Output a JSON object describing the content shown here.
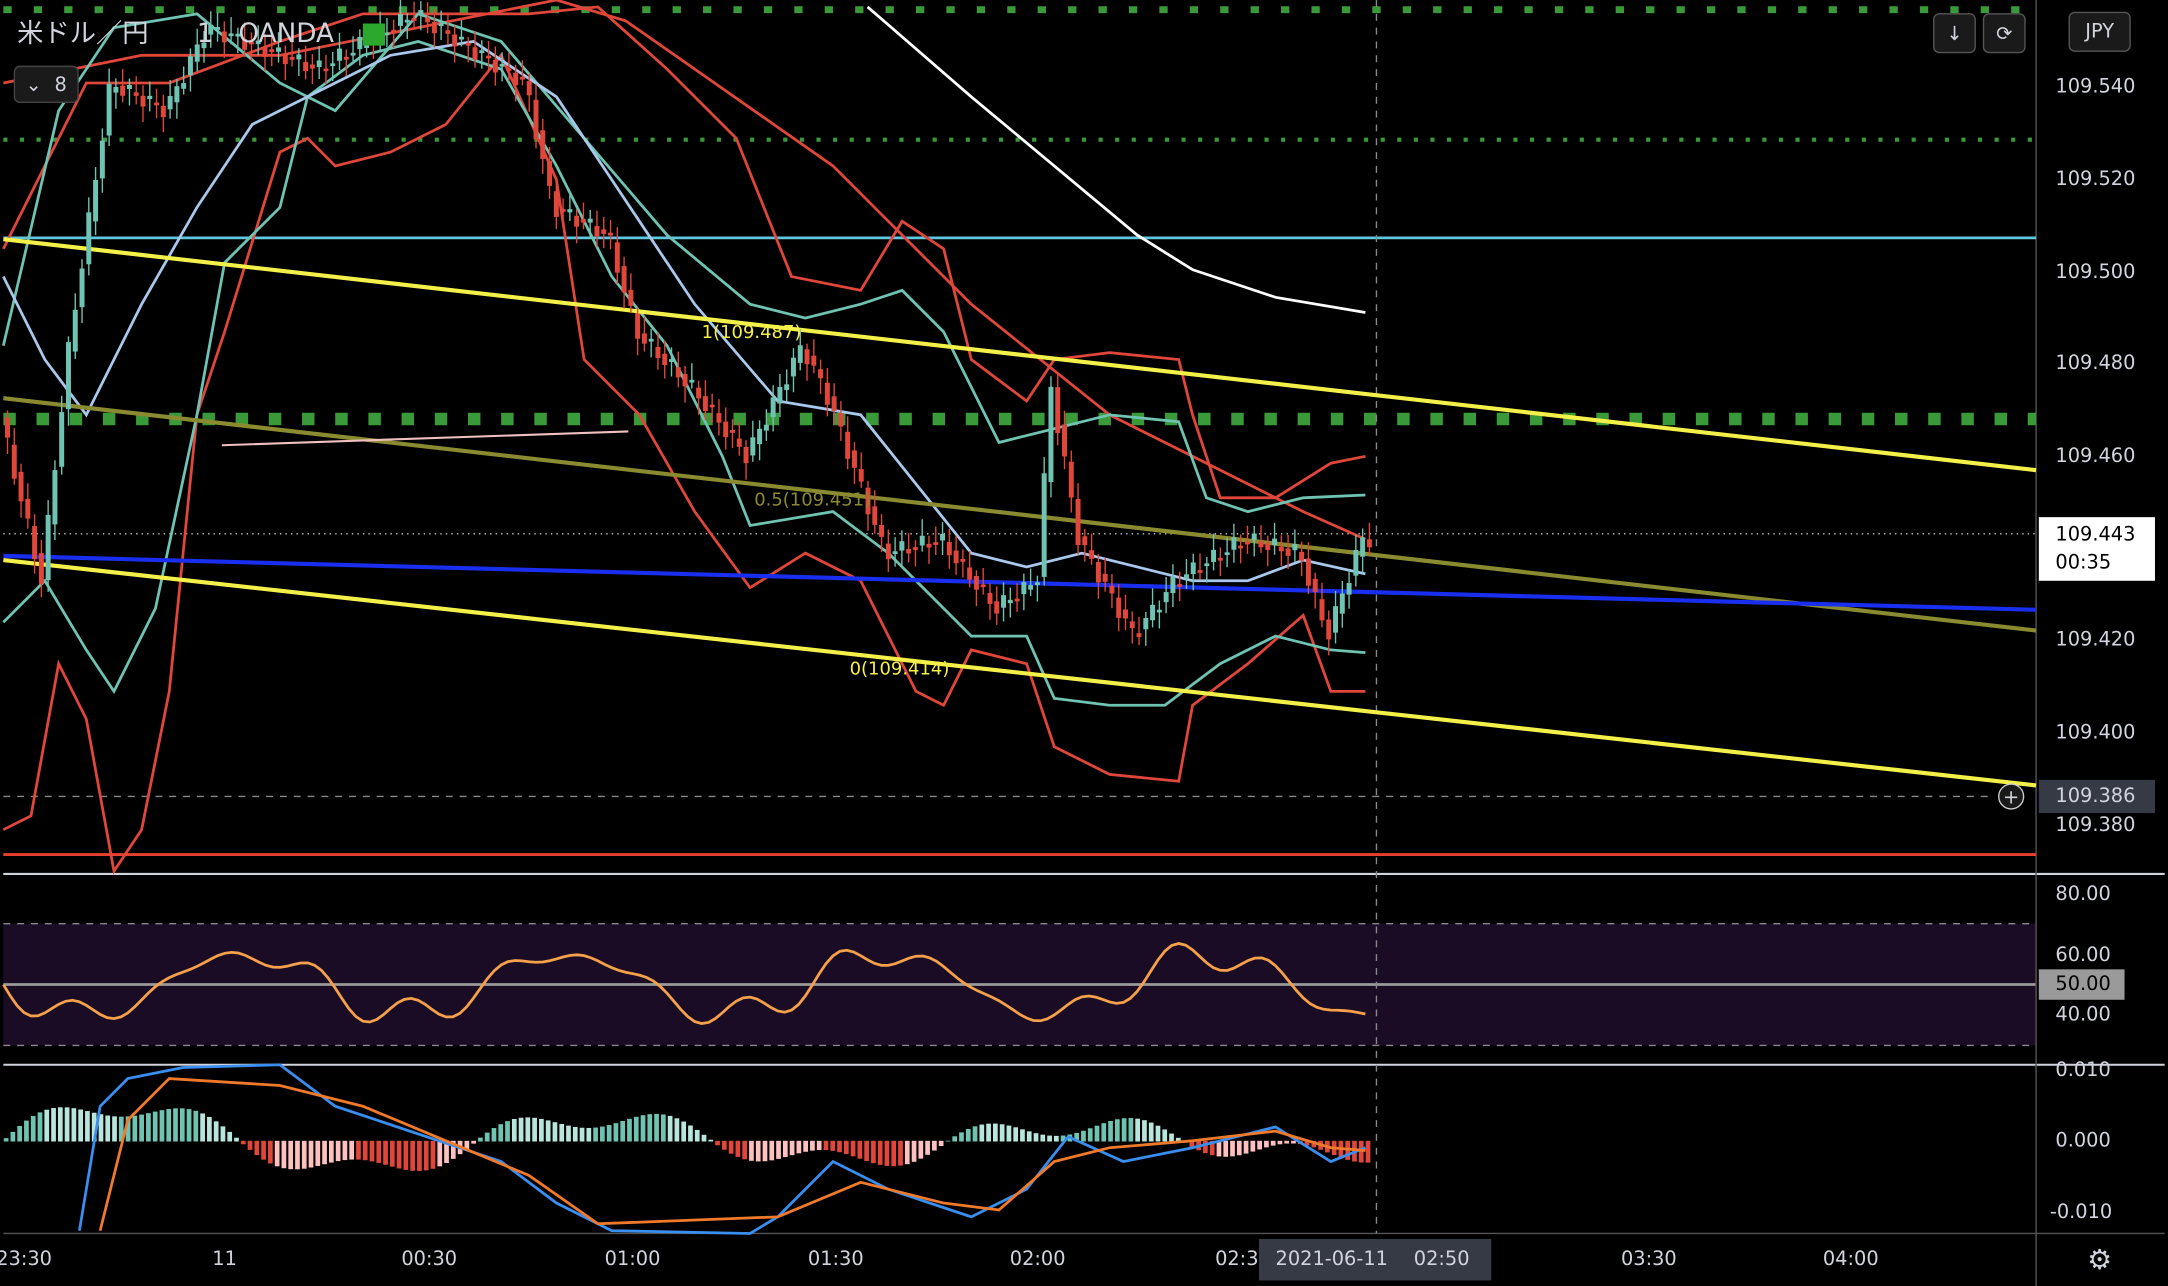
{
  "header": {
    "symbol": "米ドル／円",
    "interval": "1",
    "source": "OANDA",
    "indicator_count": "8"
  },
  "currency": "JPY",
  "price_axis": [
    "109.540",
    "109.520",
    "109.500",
    "109.480",
    "109.460",
    "109.420",
    "109.400",
    "109.380"
  ],
  "current_price": {
    "price": "109.443",
    "countdown": "00:35"
  },
  "crosshair_price": "109.386",
  "rsi_axis": [
    "80.00",
    "60.00",
    "40.00"
  ],
  "rsi_current": "50.00",
  "macd_axis": [
    "0.010",
    "0.000",
    "-0.010"
  ],
  "time_axis": [
    "23:30",
    "11",
    "00:30",
    "01:00",
    "01:30",
    "02:00",
    "02:3",
    "03:30",
    "04:00"
  ],
  "crosshair_time": {
    "date": "2021-06-11",
    "time": "02:50"
  },
  "fib_labels": [
    "1(109.487)",
    "0.5(109.451)",
    "0(109.414)"
  ]
}
